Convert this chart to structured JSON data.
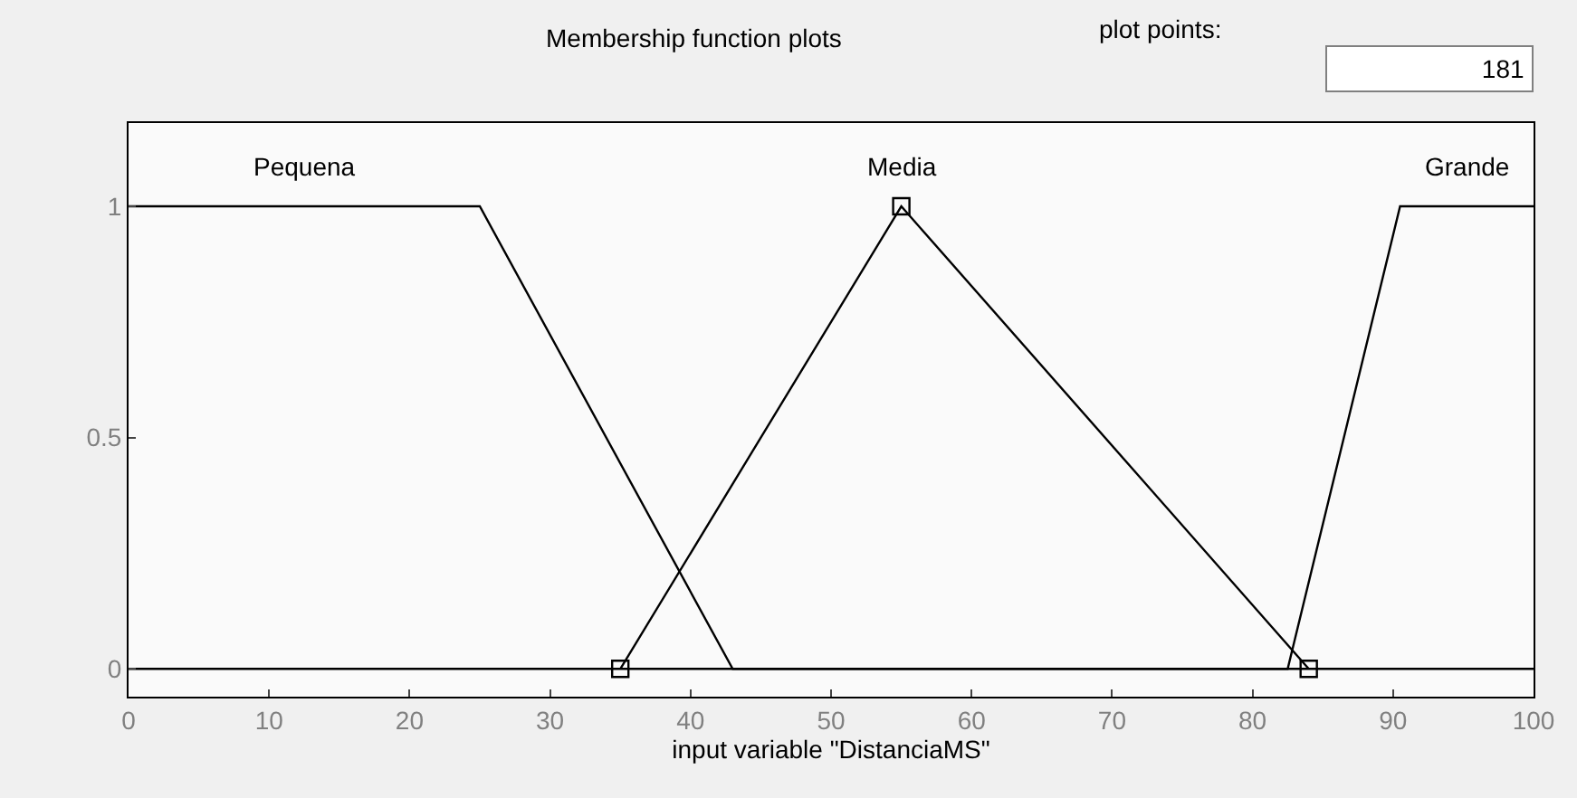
{
  "chart_data": {
    "type": "line",
    "title": "Membership function plots",
    "xlabel": "input variable \"DistanciaMS\"",
    "annotations": [
      "plot points:",
      "181"
    ],
    "xlim": [
      0,
      100
    ],
    "xticks": [
      0,
      10,
      20,
      30,
      40,
      50,
      60,
      70,
      80,
      90,
      100
    ],
    "ylim": [
      -0.06,
      1.18
    ],
    "yticks": [
      0,
      0.5,
      1
    ],
    "legend": false,
    "series": [
      {
        "name": "Pequena",
        "color": "#000000",
        "x": [
          0,
          25,
          43,
          100
        ],
        "values": [
          1,
          1,
          0,
          0
        ]
      },
      {
        "name": "Media",
        "color": "#000000",
        "x": [
          35,
          55,
          84
        ],
        "values": [
          0,
          1,
          0
        ],
        "marker": "square"
      },
      {
        "name": "Grande",
        "color": "#000000",
        "x": [
          0,
          82.5,
          90.5,
          100
        ],
        "values": [
          0,
          0,
          1,
          1
        ]
      }
    ]
  }
}
